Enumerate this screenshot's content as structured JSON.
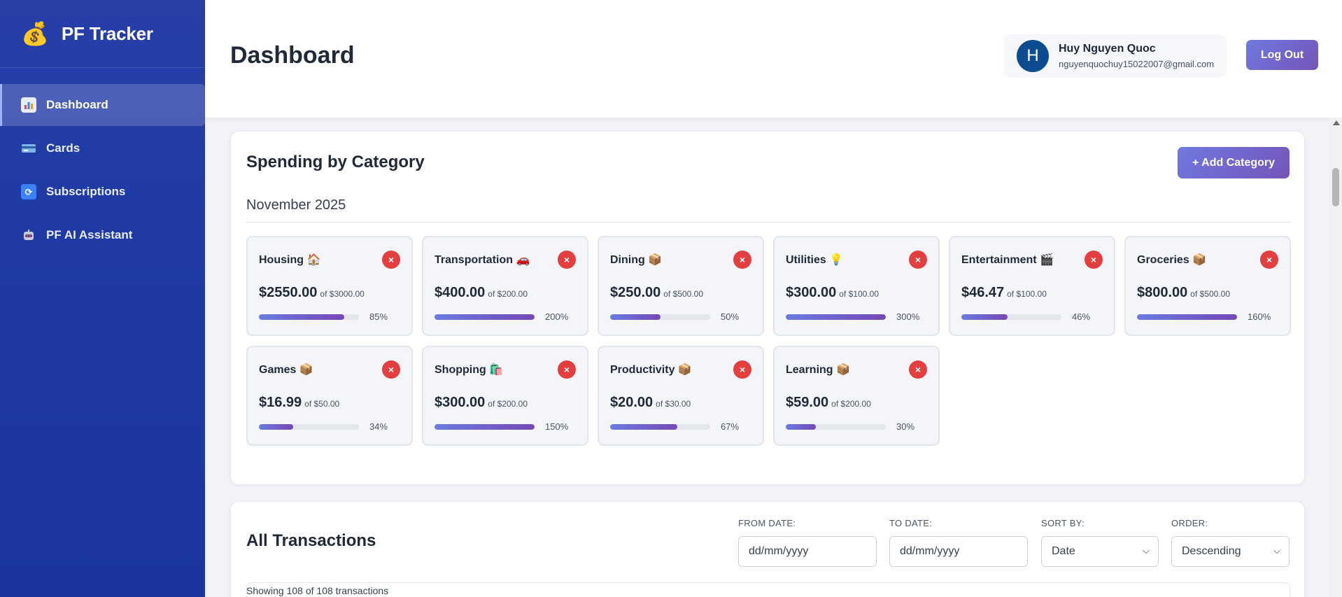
{
  "app": {
    "title": "PF Tracker",
    "logo_icon": "money-bag-icon"
  },
  "sidebar": {
    "items": [
      {
        "label": "Dashboard",
        "icon": "bar-chart-icon",
        "active": true
      },
      {
        "label": "Cards",
        "icon": "credit-card-icon",
        "active": false
      },
      {
        "label": "Subscriptions",
        "icon": "refresh-icon",
        "active": false
      },
      {
        "label": "PF AI Assistant",
        "icon": "robot-icon",
        "active": false
      }
    ]
  },
  "header": {
    "title": "Dashboard",
    "user": {
      "initial": "H",
      "name": "Huy Nguyen Quoc",
      "email": "nguyenquochuy15022007@gmail.com"
    },
    "logout_label": "Log Out"
  },
  "spending": {
    "title": "Spending by Category",
    "add_label": "+ Add Category",
    "month": "November 2025",
    "categories": [
      {
        "name": "Housing",
        "emoji": "🏠",
        "amount": "$2550.00",
        "budget": "of $3000.00",
        "pct_label": "85%",
        "fill": 85
      },
      {
        "name": "Transportation",
        "emoji": "🚗",
        "amount": "$400.00",
        "budget": "of $200.00",
        "pct_label": "200%",
        "fill": 100
      },
      {
        "name": "Dining",
        "emoji": "📦",
        "amount": "$250.00",
        "budget": "of $500.00",
        "pct_label": "50%",
        "fill": 50
      },
      {
        "name": "Utilities",
        "emoji": "💡",
        "amount": "$300.00",
        "budget": "of $100.00",
        "pct_label": "300%",
        "fill": 100
      },
      {
        "name": "Entertainment",
        "emoji": "🎬",
        "amount": "$46.47",
        "budget": "of $100.00",
        "pct_label": "46%",
        "fill": 46
      },
      {
        "name": "Groceries",
        "emoji": "📦",
        "amount": "$800.00",
        "budget": "of $500.00",
        "pct_label": "160%",
        "fill": 100
      },
      {
        "name": "Games",
        "emoji": "📦",
        "amount": "$16.99",
        "budget": "of $50.00",
        "pct_label": "34%",
        "fill": 34
      },
      {
        "name": "Shopping",
        "emoji": "🛍️",
        "amount": "$300.00",
        "budget": "of $200.00",
        "pct_label": "150%",
        "fill": 100
      },
      {
        "name": "Productivity",
        "emoji": "📦",
        "amount": "$20.00",
        "budget": "of $30.00",
        "pct_label": "67%",
        "fill": 67
      },
      {
        "name": "Learning",
        "emoji": "📦",
        "amount": "$59.00",
        "budget": "of $200.00",
        "pct_label": "30%",
        "fill": 30
      }
    ],
    "delete_glyph": "×"
  },
  "transactions": {
    "title": "All Transactions",
    "from_label": "FROM DATE:",
    "from_placeholder": "dd/mm/yyyy",
    "to_label": "TO DATE:",
    "to_placeholder": "dd/mm/yyyy",
    "sort_label": "SORT BY:",
    "sort_value": "Date",
    "order_label": "ORDER:",
    "order_value": "Descending",
    "showing": "Showing 108 of 108 transactions"
  },
  "colors": {
    "sidebar": "#1f3aa4",
    "accent_start": "#6f79e0",
    "accent_end": "#7554b8",
    "danger": "#e53e3e",
    "avatar": "#0e4c91"
  }
}
